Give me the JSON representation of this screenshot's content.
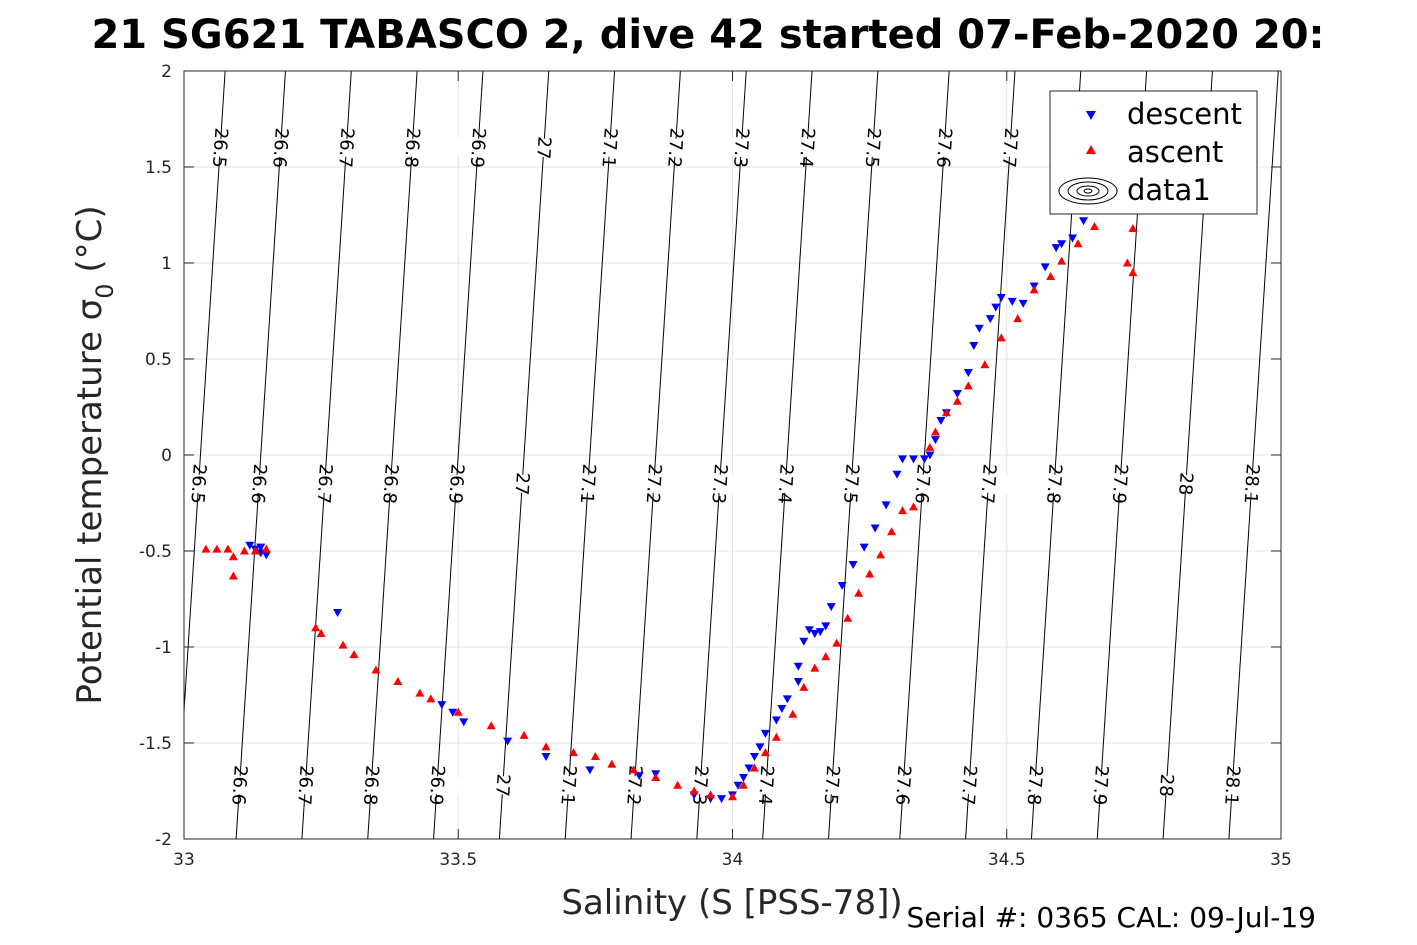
{
  "title": "21 SG621 TABASCO 2, dive 42 started 07-Feb-2020 20:",
  "footer": "Serial #: 0365  CAL: 09-Jul-19",
  "chart_data": {
    "type": "scatter",
    "xlabel": "Salinity (S [PSS-78])",
    "ylabel": "Potential temperature σ",
    "ylabel_sub": "0",
    "ylabel_unit": " (°C)",
    "xlim": [
      33,
      35
    ],
    "ylim": [
      -2,
      2
    ],
    "xticks": [
      33,
      33.5,
      34,
      34.5,
      35
    ],
    "xtick_labels": [
      "33",
      "33.5",
      "34",
      "34.5",
      "35"
    ],
    "yticks": [
      -2,
      -1.5,
      -1,
      -0.5,
      0,
      0.5,
      1,
      1.5,
      2
    ],
    "ytick_labels": [
      "-2",
      "-1.5",
      "-1",
      "-0.5",
      "0",
      "0.5",
      "1",
      "1.5",
      "2"
    ],
    "grid": true,
    "legend": {
      "position": "top-right",
      "entries": [
        "descent",
        "ascent",
        "data1"
      ]
    },
    "colors": {
      "descent": "#0000ff",
      "ascent": "#ff0000",
      "contour": "#000000"
    },
    "density_contours": [
      {
        "x": 33.03,
        "label": "26.5"
      },
      {
        "x": 33.14,
        "label": "26.6"
      },
      {
        "x": 33.26,
        "label": "26.7"
      },
      {
        "x": 33.38,
        "label": "26.8"
      },
      {
        "x": 33.5,
        "label": "26.9"
      },
      {
        "x": 33.62,
        "label": "27"
      },
      {
        "x": 33.74,
        "label": "27.1"
      },
      {
        "x": 33.86,
        "label": "27.2"
      },
      {
        "x": 33.98,
        "label": "27.3"
      },
      {
        "x": 34.1,
        "label": "27.4"
      },
      {
        "x": 34.22,
        "label": "27.5"
      },
      {
        "x": 34.35,
        "label": "27.6"
      },
      {
        "x": 34.47,
        "label": "27.7"
      },
      {
        "x": 34.59,
        "label": "27.8"
      },
      {
        "x": 34.71,
        "label": "27.9"
      },
      {
        "x": 34.83,
        "label": "28"
      },
      {
        "x": 34.95,
        "label": "28.1"
      }
    ],
    "series": [
      {
        "name": "descent",
        "marker": "triangle-down",
        "points": [
          [
            33.12,
            -0.47
          ],
          [
            33.13,
            -0.49
          ],
          [
            33.14,
            -0.51
          ],
          [
            33.15,
            -0.52
          ],
          [
            33.14,
            -0.48
          ],
          [
            33.28,
            -0.82
          ],
          [
            33.47,
            -1.3
          ],
          [
            33.49,
            -1.34
          ],
          [
            33.51,
            -1.39
          ],
          [
            33.59,
            -1.49
          ],
          [
            33.66,
            -1.57
          ],
          [
            33.74,
            -1.64
          ],
          [
            33.83,
            -1.67
          ],
          [
            33.86,
            -1.66
          ],
          [
            33.93,
            -1.77
          ],
          [
            33.96,
            -1.79
          ],
          [
            33.98,
            -1.79
          ],
          [
            34.0,
            -1.77
          ],
          [
            34.01,
            -1.72
          ],
          [
            34.02,
            -1.68
          ],
          [
            34.03,
            -1.63
          ],
          [
            34.04,
            -1.57
          ],
          [
            34.05,
            -1.52
          ],
          [
            34.06,
            -1.45
          ],
          [
            34.08,
            -1.38
          ],
          [
            34.09,
            -1.32
          ],
          [
            34.1,
            -1.27
          ],
          [
            34.12,
            -1.18
          ],
          [
            34.12,
            -1.1
          ],
          [
            34.13,
            -0.97
          ],
          [
            34.14,
            -0.91
          ],
          [
            34.15,
            -0.93
          ],
          [
            34.16,
            -0.92
          ],
          [
            34.17,
            -0.89
          ],
          [
            34.18,
            -0.79
          ],
          [
            34.2,
            -0.68
          ],
          [
            34.22,
            -0.57
          ],
          [
            34.24,
            -0.48
          ],
          [
            34.26,
            -0.38
          ],
          [
            34.28,
            -0.26
          ],
          [
            34.3,
            -0.1
          ],
          [
            34.31,
            -0.02
          ],
          [
            34.33,
            -0.02
          ],
          [
            34.35,
            -0.02
          ],
          [
            34.36,
            0.0
          ],
          [
            34.37,
            0.08
          ],
          [
            34.38,
            0.18
          ],
          [
            34.39,
            0.22
          ],
          [
            34.41,
            0.32
          ],
          [
            34.43,
            0.43
          ],
          [
            34.44,
            0.57
          ],
          [
            34.45,
            0.66
          ],
          [
            34.47,
            0.71
          ],
          [
            34.48,
            0.77
          ],
          [
            34.49,
            0.82
          ],
          [
            34.51,
            0.8
          ],
          [
            34.53,
            0.79
          ],
          [
            34.55,
            0.88
          ],
          [
            34.57,
            0.98
          ],
          [
            34.59,
            1.08
          ],
          [
            34.6,
            1.1
          ],
          [
            34.62,
            1.13
          ],
          [
            34.64,
            1.22
          ],
          [
            34.66,
            1.29
          ],
          [
            34.68,
            1.37
          ]
        ]
      },
      {
        "name": "ascent",
        "marker": "triangle-up",
        "points": [
          [
            33.04,
            -0.49
          ],
          [
            33.06,
            -0.49
          ],
          [
            33.08,
            -0.49
          ],
          [
            33.09,
            -0.53
          ],
          [
            33.09,
            -0.63
          ],
          [
            33.11,
            -0.5
          ],
          [
            33.13,
            -0.5
          ],
          [
            33.15,
            -0.49
          ],
          [
            33.24,
            -0.9
          ],
          [
            33.25,
            -0.93
          ],
          [
            33.29,
            -0.99
          ],
          [
            33.31,
            -1.04
          ],
          [
            33.35,
            -1.12
          ],
          [
            33.39,
            -1.18
          ],
          [
            33.43,
            -1.24
          ],
          [
            33.45,
            -1.27
          ],
          [
            33.5,
            -1.34
          ],
          [
            33.56,
            -1.41
          ],
          [
            33.62,
            -1.46
          ],
          [
            33.66,
            -1.52
          ],
          [
            33.71,
            -1.55
          ],
          [
            33.75,
            -1.57
          ],
          [
            33.78,
            -1.61
          ],
          [
            33.82,
            -1.64
          ],
          [
            33.86,
            -1.68
          ],
          [
            33.9,
            -1.72
          ],
          [
            33.93,
            -1.75
          ],
          [
            33.96,
            -1.77
          ],
          [
            34.0,
            -1.78
          ],
          [
            34.02,
            -1.72
          ],
          [
            34.04,
            -1.63
          ],
          [
            34.06,
            -1.55
          ],
          [
            34.08,
            -1.47
          ],
          [
            34.11,
            -1.35
          ],
          [
            34.13,
            -1.21
          ],
          [
            34.15,
            -1.11
          ],
          [
            34.17,
            -1.05
          ],
          [
            34.19,
            -0.98
          ],
          [
            34.21,
            -0.85
          ],
          [
            34.23,
            -0.72
          ],
          [
            34.25,
            -0.62
          ],
          [
            34.27,
            -0.52
          ],
          [
            34.29,
            -0.4
          ],
          [
            34.31,
            -0.29
          ],
          [
            34.33,
            -0.27
          ],
          [
            34.36,
            0.04
          ],
          [
            34.37,
            0.12
          ],
          [
            34.39,
            0.22
          ],
          [
            34.41,
            0.28
          ],
          [
            34.43,
            0.36
          ],
          [
            34.46,
            0.47
          ],
          [
            34.49,
            0.61
          ],
          [
            34.52,
            0.71
          ],
          [
            34.55,
            0.86
          ],
          [
            34.58,
            0.93
          ],
          [
            34.6,
            1.01
          ],
          [
            34.63,
            1.1
          ],
          [
            34.66,
            1.19
          ],
          [
            34.68,
            1.32
          ],
          [
            34.72,
            1.0
          ],
          [
            34.73,
            0.95
          ],
          [
            34.73,
            1.18
          ],
          [
            34.73,
            1.32
          ]
        ]
      }
    ]
  }
}
